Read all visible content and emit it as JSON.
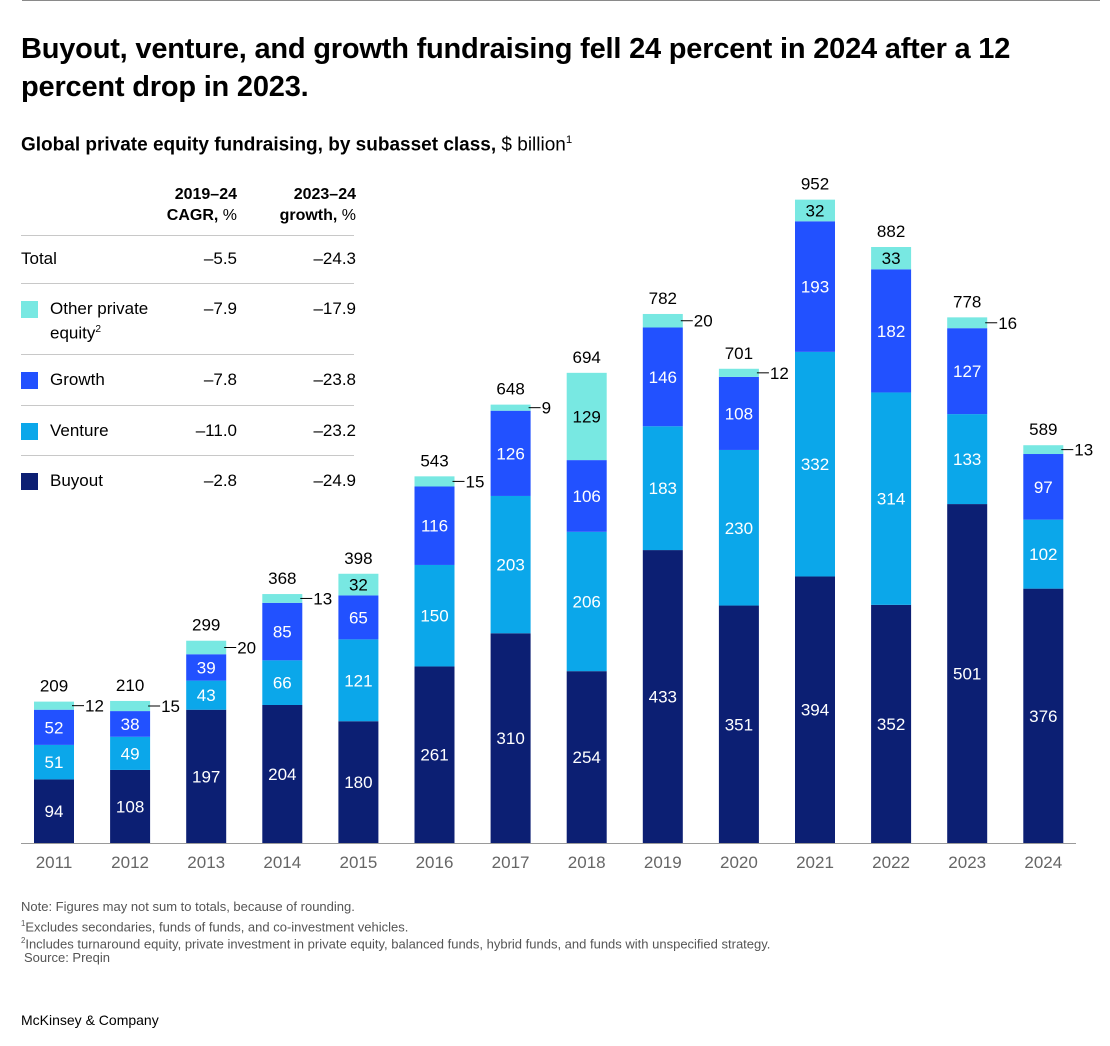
{
  "headline": "Buyout, venture, and growth fundraising fell 24 percent in 2024 after a 12 percent drop in 2023.",
  "subtitle": {
    "bold": "Global private equity fundraising, by subasset class,",
    "unit": " $ billion",
    "sup": "1"
  },
  "legend": {
    "header1": {
      "line1": "2019–24",
      "line2": "CAGR,",
      "line2_unit": " %"
    },
    "header2": {
      "line1": "2023–24",
      "line2": "growth,",
      "line2_unit": " %"
    },
    "rows": [
      {
        "label": "Total",
        "sup": "",
        "cagr": "–5.5",
        "growth": "–24.3"
      },
      {
        "label": "Other private equity",
        "sup": "2",
        "cagr": "–7.9",
        "growth": "–17.9"
      },
      {
        "label": "Growth",
        "sup": "",
        "cagr": "–7.8",
        "growth": "–23.8"
      },
      {
        "label": "Venture",
        "sup": "",
        "cagr": "–11.0",
        "growth": "–23.2"
      },
      {
        "label": "Buyout",
        "sup": "",
        "cagr": "–2.8",
        "growth": "–24.9"
      }
    ]
  },
  "chart_data": {
    "type": "bar",
    "stacked": true,
    "unit": "$ billion",
    "categories": [
      "2011",
      "2012",
      "2013",
      "2014",
      "2015",
      "2016",
      "2017",
      "2018",
      "2019",
      "2020",
      "2021",
      "2022",
      "2023",
      "2024"
    ],
    "series": [
      {
        "name": "Buyout",
        "color": "#0c1f73",
        "values": [
          94,
          108,
          197,
          204,
          180,
          261,
          310,
          254,
          433,
          351,
          394,
          352,
          501,
          376
        ]
      },
      {
        "name": "Venture",
        "color": "#0ba7ea",
        "values": [
          51,
          49,
          43,
          66,
          121,
          150,
          203,
          206,
          183,
          230,
          332,
          314,
          133,
          102
        ]
      },
      {
        "name": "Growth",
        "color": "#2251ff",
        "values": [
          52,
          38,
          39,
          85,
          65,
          116,
          126,
          106,
          146,
          108,
          193,
          182,
          127,
          97
        ]
      },
      {
        "name": "Other private equity",
        "color": "#78e8e2",
        "values": [
          12,
          15,
          20,
          13,
          32,
          15,
          9,
          129,
          20,
          12,
          32,
          33,
          16,
          13
        ]
      }
    ],
    "totals": [
      209,
      210,
      299,
      368,
      398,
      543,
      648,
      694,
      782,
      701,
      952,
      882,
      778,
      589
    ],
    "ylim": [
      0,
      1000
    ]
  },
  "footnotes": {
    "note": "Note: Figures may not sum to totals, because of rounding.",
    "fn1": "Excludes secondaries, funds of funds, and co-investment vehicles.",
    "fn2": "Includes turnaround equity, private investment in private equity, balanced funds, hybrid funds, and funds with unspecified strategy.",
    "source": "Source: Preqin"
  },
  "brand": "McKinsey & Company"
}
